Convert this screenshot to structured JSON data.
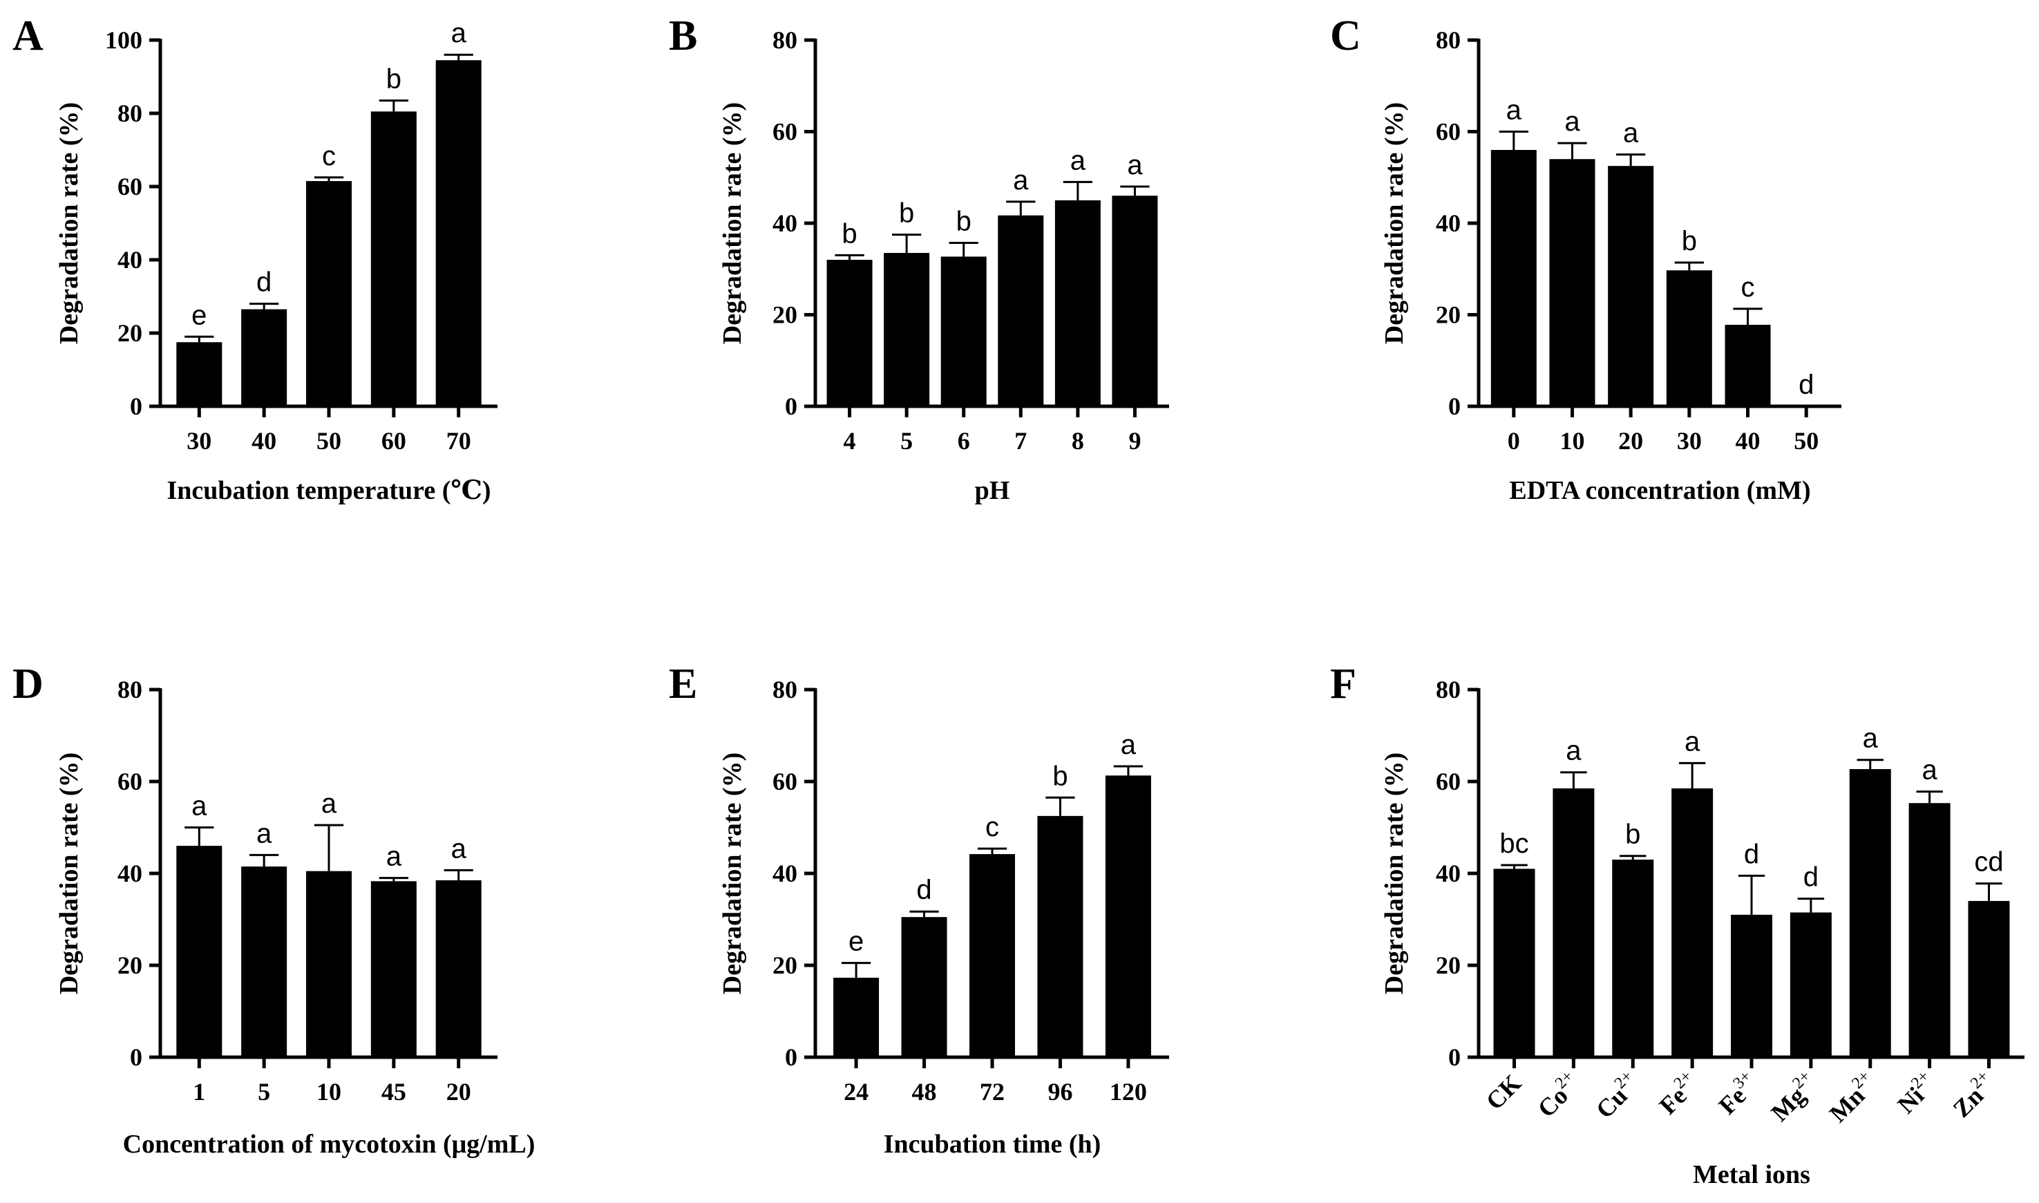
{
  "chart_data": [
    {
      "type": "bar",
      "panel": "A",
      "categories": [
        "30",
        "40",
        "50",
        "60",
        "70"
      ],
      "values": [
        17.5,
        26.5,
        61.5,
        80.5,
        94.5
      ],
      "errors": [
        1.5,
        1.5,
        1.0,
        3.0,
        1.5
      ],
      "sig": [
        "e",
        "d",
        "c",
        "b",
        "a"
      ],
      "xlabel": "Incubation temperature (℃)",
      "ylabel": "Degradation rate (%)",
      "ylim": [
        0,
        100
      ],
      "yticks": [
        0,
        20,
        40,
        60,
        80,
        100
      ],
      "colors": {
        "bar": "#000000"
      }
    },
    {
      "type": "bar",
      "panel": "B",
      "categories": [
        "4",
        "5",
        "6",
        "7",
        "8",
        "9"
      ],
      "values": [
        32,
        33.5,
        32.7,
        41.7,
        45,
        46
      ],
      "errors": [
        1.0,
        4.0,
        3.0,
        3.0,
        4.0,
        2.0
      ],
      "sig": [
        "b",
        "b",
        "b",
        "a",
        "a",
        "a"
      ],
      "xlabel": "pH",
      "ylabel": "Degradation rate (%)",
      "ylim": [
        0,
        80
      ],
      "yticks": [
        0,
        20,
        40,
        60,
        80
      ],
      "colors": {
        "bar": "#000000"
      }
    },
    {
      "type": "bar",
      "panel": "C",
      "categories": [
        "0",
        "10",
        "20",
        "30",
        "40",
        "50"
      ],
      "values": [
        56,
        54,
        52.5,
        29.7,
        17.8,
        0
      ],
      "errors": [
        4.0,
        3.5,
        2.5,
        1.7,
        3.5,
        0
      ],
      "sig": [
        "a",
        "a",
        "a",
        "b",
        "c",
        "d"
      ],
      "xlabel": "EDTA concentration (mM)",
      "ylabel": "Degradation rate (%)",
      "ylim": [
        0,
        80
      ],
      "yticks": [
        0,
        20,
        40,
        60,
        80
      ],
      "colors": {
        "bar": "#000000"
      }
    },
    {
      "type": "bar",
      "panel": "D",
      "categories": [
        "1",
        "5",
        "10",
        "45",
        "20"
      ],
      "values": [
        46,
        41.5,
        40.5,
        38.3,
        38.5
      ],
      "errors": [
        4.0,
        2.5,
        10.0,
        0.7,
        2.2
      ],
      "sig": [
        "a",
        "a",
        "a",
        "a",
        "a"
      ],
      "xlabel": "Concentration of mycotoxin (μg/mL)",
      "ylabel": "Degradation rate (%)",
      "ylim": [
        0,
        80
      ],
      "yticks": [
        0,
        20,
        40,
        60,
        80
      ],
      "colors": {
        "bar": "#000000"
      }
    },
    {
      "type": "bar",
      "panel": "E",
      "categories": [
        "24",
        "48",
        "72",
        "96",
        "120"
      ],
      "values": [
        17.3,
        30.5,
        44.2,
        52.5,
        61.3
      ],
      "errors": [
        3.2,
        1.2,
        1.2,
        4.0,
        2.0
      ],
      "sig": [
        "e",
        "d",
        "c",
        "b",
        "a"
      ],
      "xlabel": "Incubation time (h)",
      "ylabel": "Degradation rate (%)",
      "ylim": [
        0,
        80
      ],
      "yticks": [
        0,
        20,
        40,
        60,
        80
      ],
      "colors": {
        "bar": "#000000"
      }
    },
    {
      "type": "bar",
      "panel": "F",
      "categories": [
        "CK",
        "Co",
        "Cu",
        "Fe",
        "Fe",
        "Mg",
        "Mn",
        "Ni",
        "Zn"
      ],
      "category_superscripts": [
        "",
        "2+",
        "2+",
        "2+",
        "3+",
        "2+",
        "2+",
        "2+",
        "2+"
      ],
      "values": [
        41,
        58.5,
        43,
        58.5,
        31,
        31.5,
        62.7,
        55.3,
        34
      ],
      "errors": [
        0.8,
        3.5,
        0.8,
        5.5,
        8.5,
        3.0,
        2.0,
        2.5,
        3.8
      ],
      "sig": [
        "bc",
        "a",
        "b",
        "a",
        "d",
        "d",
        "a",
        "a",
        "cd"
      ],
      "xlabel": "Metal ions",
      "ylabel": "Degradation rate (%)",
      "ylim": [
        0,
        80
      ],
      "yticks": [
        0,
        20,
        40,
        60,
        80
      ],
      "colors": {
        "bar": "#000000"
      }
    }
  ]
}
